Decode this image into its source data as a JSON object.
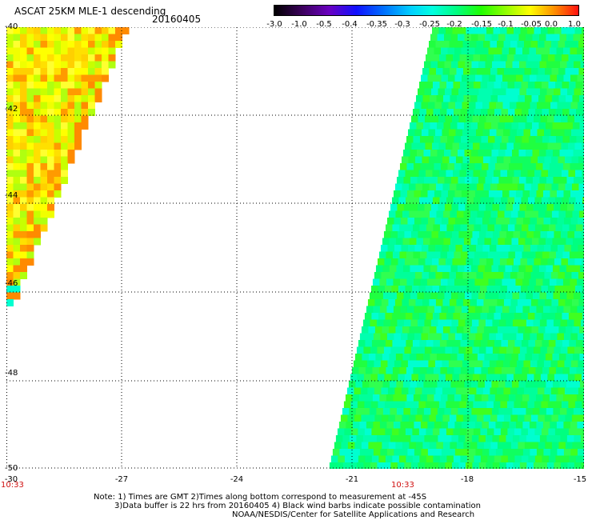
{
  "header": {
    "title": "ASCAT 25KM MLE-1 descending",
    "date": "20160405"
  },
  "colorbar": {
    "labels": [
      "-3.0",
      "-1.0",
      "-0.5",
      "-0.4",
      "-0.35",
      "-0.3",
      "-0.25",
      "-0.2",
      "-0.15",
      "-0.1",
      "-0.05",
      "0.0",
      "1.0"
    ],
    "colors": [
      "#1a0010",
      "#6a00b0",
      "#1a10ff",
      "#0060ff",
      "#00b0ff",
      "#00ffe8",
      "#00ff80",
      "#20ff00",
      "#a0ff00",
      "#ffff00",
      "#ffb000",
      "#ff3000"
    ]
  },
  "axes": {
    "y_labels": [
      "-40",
      "-42",
      "-44",
      "-46",
      "-48",
      "-50"
    ],
    "x_labels": [
      "-30",
      "-27",
      "-24",
      "-21",
      "-18",
      "-15"
    ]
  },
  "times": [
    "10:33",
    "10:33"
  ],
  "notes": [
    "Note: 1) Times are GMT 2)Times along bottom correspond to measurement at -45S",
    "3)Data buffer is 22 hrs from 20160405 4) Black wind barbs indicate possible contamination",
    "NOAA/NESDIS/Center for Satellite Applications and Research"
  ]
}
